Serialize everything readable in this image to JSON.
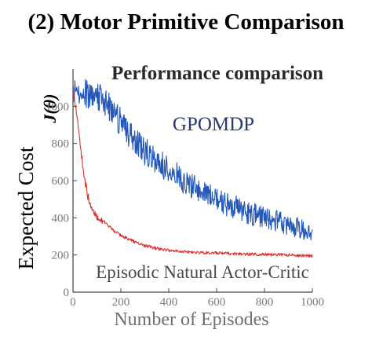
{
  "chart_data": {
    "type": "line",
    "figure_title": "(2) Motor Primitive Comparison",
    "title": "Performance comparison",
    "ylabel": "Expected Cost",
    "ylabel_secondary": "J(θ)",
    "xlabel": "Number of Episodes",
    "xlim": [
      0,
      1000
    ],
    "ylim": [
      0,
      1200
    ],
    "xticks": [
      "0",
      "200",
      "400",
      "600",
      "800",
      "1000"
    ],
    "yticks": [
      "0",
      "200",
      "400",
      "600",
      "800",
      "1000"
    ],
    "grid": false,
    "legend": "none",
    "annotations": [
      "GPOMDP",
      "Episodic Natural Actor-Critic"
    ],
    "series": [
      {
        "name": "GPOMDP",
        "color": "#2357b8",
        "x": [
          0,
          50,
          100,
          150,
          200,
          250,
          300,
          350,
          400,
          450,
          500,
          550,
          600,
          650,
          700,
          750,
          800,
          850,
          900,
          950,
          1000
        ],
        "values": [
          1080,
          1075,
          1060,
          1005,
          915,
          830,
          760,
          705,
          655,
          610,
          570,
          535,
          500,
          470,
          445,
          420,
          400,
          380,
          360,
          340,
          325
        ]
      },
      {
        "name": "Episodic Natural Actor-Critic",
        "color": "#d9302f",
        "x": [
          0,
          10,
          20,
          30,
          40,
          50,
          60,
          70,
          80,
          90,
          100,
          125,
          150,
          200,
          250,
          300,
          350,
          400,
          450,
          500,
          600,
          700,
          800,
          900,
          1000
        ],
        "values": [
          1110,
          1020,
          920,
          800,
          690,
          600,
          530,
          475,
          440,
          425,
          405,
          380,
          350,
          305,
          275,
          250,
          235,
          225,
          220,
          215,
          210,
          205,
          203,
          200,
          195
        ]
      }
    ]
  }
}
